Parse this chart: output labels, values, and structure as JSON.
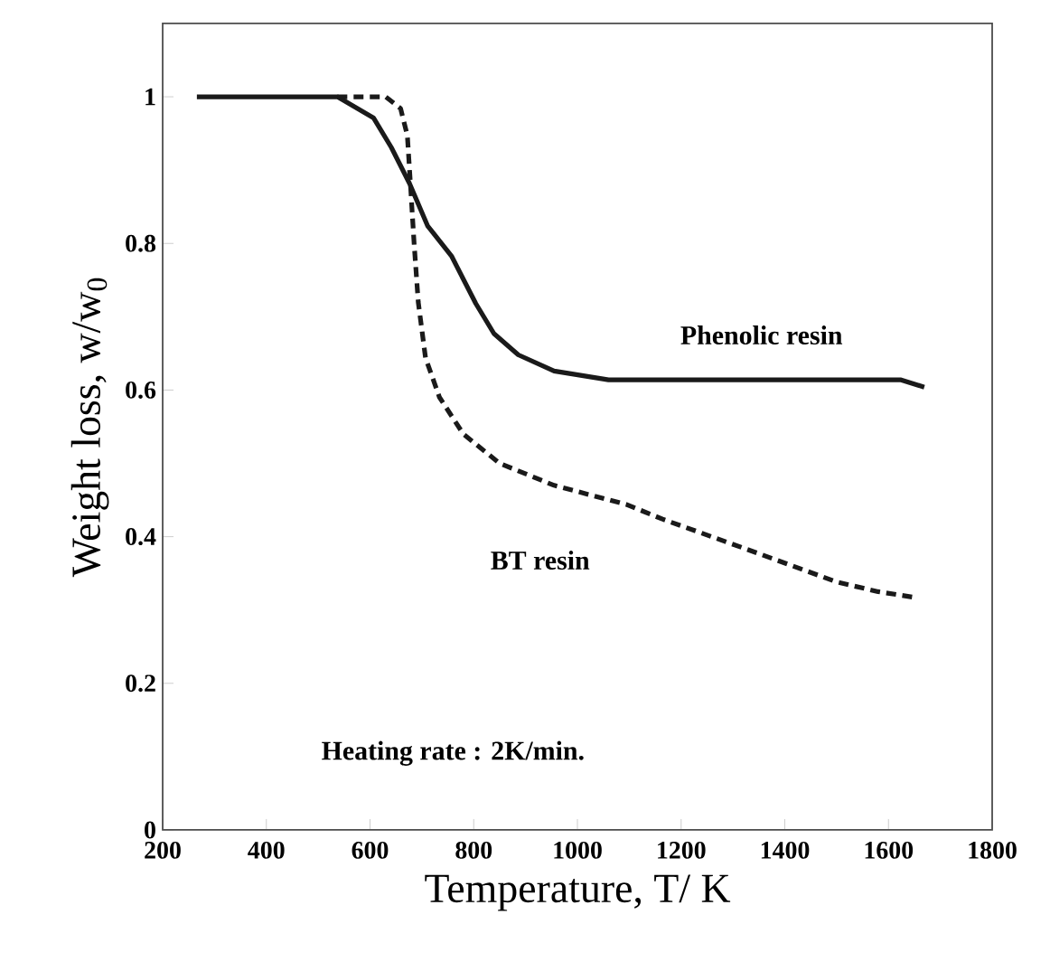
{
  "chart_data": {
    "type": "line",
    "xlabel": "Temperature, T/ K",
    "ylabel": "Weight loss, w/w$_{0}$",
    "xlim": [
      200,
      1800
    ],
    "xticks": [
      200,
      400,
      600,
      800,
      1000,
      1200,
      1400,
      1600,
      1800
    ],
    "ylim": [
      0,
      1.1
    ],
    "yticks": [
      0,
      0.2,
      0.4,
      0.6,
      0.8,
      1
    ],
    "grid": false,
    "legend": false,
    "marker": "none",
    "series": [
      {
        "name": "Phenolic resin",
        "color": "#1a1a1a",
        "line_style": "solid",
        "x": [
          266,
          537,
          607,
          641,
          676,
          711,
          757,
          804,
          839,
          886,
          955,
          1060,
          1623,
          1669
        ],
        "values": [
          1,
          1,
          0.971,
          0.931,
          0.882,
          0.824,
          0.783,
          0.718,
          0.677,
          0.648,
          0.626,
          0.614,
          0.614,
          0.604
        ]
      },
      {
        "name": "BT resin",
        "color": "#1a1a1a",
        "line_style": "dashed",
        "x": [
          537,
          630,
          659,
          672,
          678,
          685,
          693,
          707,
          734,
          780,
          850,
          955,
          1094,
          1164,
          1326,
          1501,
          1580,
          1652
        ],
        "values": [
          1,
          1,
          0.984,
          0.947,
          0.88,
          0.8,
          0.72,
          0.644,
          0.59,
          0.54,
          0.5,
          0.47,
          0.444,
          0.424,
          0.383,
          0.338,
          0.325,
          0.317
        ]
      }
    ],
    "annotations": [
      "Heating rate : 2K/min."
    ]
  }
}
